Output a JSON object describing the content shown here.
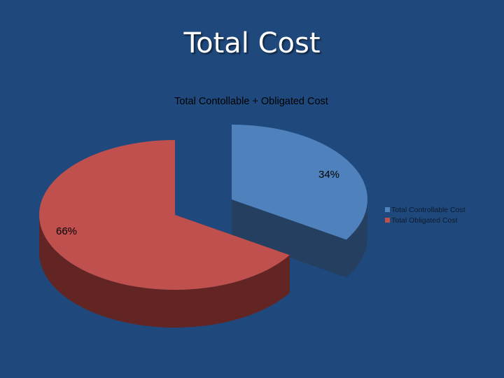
{
  "slide": {
    "title": "Total Cost"
  },
  "chart_data": {
    "type": "pie",
    "title": "Total Contollable + Obligated Cost",
    "categories": [
      "Total Controllable Cost",
      "Total Obligated Cost"
    ],
    "values": [
      34,
      66
    ],
    "data_labels": [
      "34%",
      "66%"
    ],
    "colors": [
      "#4f81bd",
      "#c0504d"
    ],
    "side_colors": [
      "#243f60",
      "#632523"
    ],
    "style": "3d-exploded",
    "legend_position": "right"
  }
}
